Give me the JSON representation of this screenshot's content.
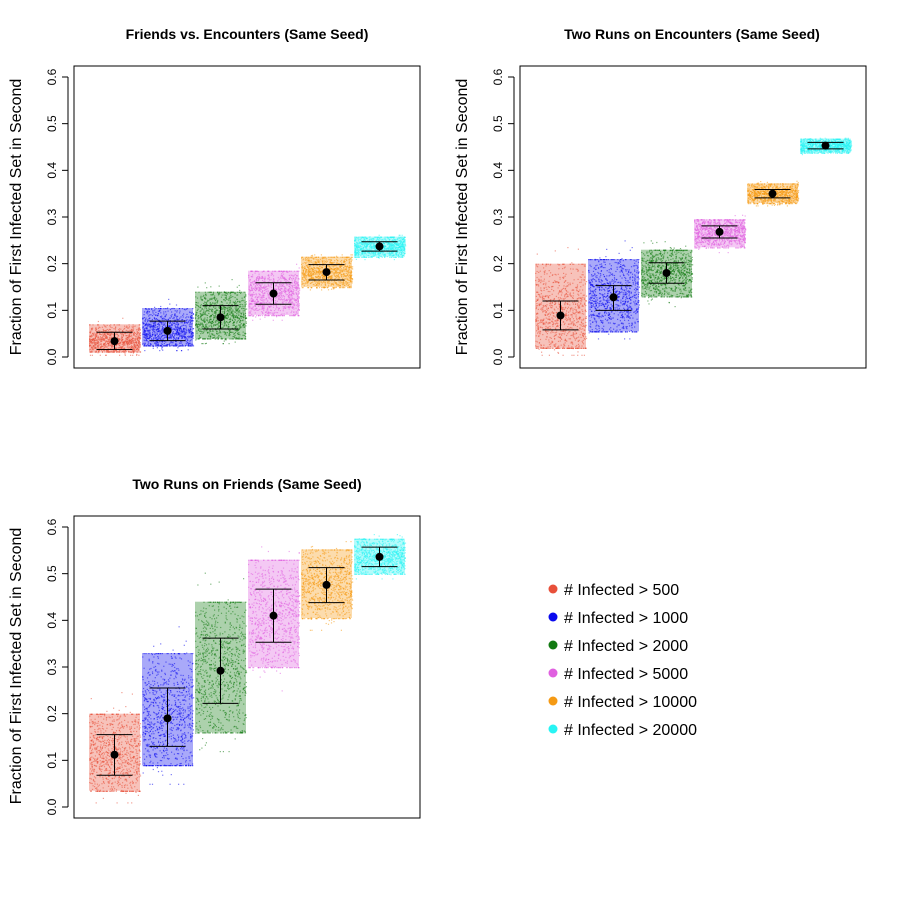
{
  "legend": {
    "title": "",
    "entries": [
      {
        "label": "# Infected > 500",
        "color": "#e8503a"
      },
      {
        "label": "# Infected > 1000",
        "color": "#0a0aee"
      },
      {
        "label": "# Infected > 2000",
        "color": "#127a12"
      },
      {
        "label": "# Infected > 5000",
        "color": "#e060e0"
      },
      {
        "label": "# Infected > 10000",
        "color": "#f59a14"
      },
      {
        "label": "# Infected > 20000",
        "color": "#28f4f4"
      }
    ]
  },
  "chart_data": [
    {
      "type": "scatter",
      "title": "Friends vs. Encounters (Same Seed)",
      "xlabel": "",
      "ylabel": "Fraction of First Infected Set in Second",
      "ylim": [
        0,
        0.6
      ],
      "yticks": [
        "0.0",
        "0.1",
        "0.2",
        "0.3",
        "0.4",
        "0.5",
        "0.6"
      ],
      "grid": false,
      "categories": [
        "# Infected > 500",
        "# Infected > 1000",
        "# Infected > 2000",
        "# Infected > 5000",
        "# Infected > 10000",
        "# Infected > 20000"
      ],
      "series": [
        {
          "name": "# Infected > 500",
          "mean": 0.034,
          "low": 0.016,
          "high": 0.053,
          "min": 0.005,
          "max": 0.11,
          "box_low": 0.012,
          "box_high": 0.07
        },
        {
          "name": "# Infected > 1000",
          "mean": 0.056,
          "low": 0.035,
          "high": 0.077,
          "min": 0.015,
          "max": 0.135,
          "box_low": 0.025,
          "box_high": 0.105
        },
        {
          "name": "# Infected > 2000",
          "mean": 0.085,
          "low": 0.06,
          "high": 0.11,
          "min": 0.03,
          "max": 0.17,
          "box_low": 0.04,
          "box_high": 0.14
        },
        {
          "name": "# Infected > 5000",
          "mean": 0.136,
          "low": 0.113,
          "high": 0.159,
          "min": 0.08,
          "max": 0.2,
          "box_low": 0.09,
          "box_high": 0.185
        },
        {
          "name": "# Infected > 10000",
          "mean": 0.182,
          "low": 0.165,
          "high": 0.198,
          "min": 0.145,
          "max": 0.22,
          "box_low": 0.15,
          "box_high": 0.215
        },
        {
          "name": "# Infected > 20000",
          "mean": 0.237,
          "low": 0.227,
          "high": 0.247,
          "min": 0.21,
          "max": 0.262,
          "box_low": 0.215,
          "box_high": 0.258
        }
      ]
    },
    {
      "type": "scatter",
      "title": "Two Runs on Encounters (Same Seed)",
      "xlabel": "",
      "ylabel": "Fraction of First Infected Set in Second",
      "ylim": [
        0,
        0.6
      ],
      "yticks": [
        "0.0",
        "0.1",
        "0.2",
        "0.3",
        "0.4",
        "0.5",
        "0.6"
      ],
      "grid": false,
      "categories": [
        "# Infected > 500",
        "# Infected > 1000",
        "# Infected > 2000",
        "# Infected > 5000",
        "# Infected > 10000",
        "# Infected > 20000"
      ],
      "series": [
        {
          "name": "# Infected > 500",
          "mean": 0.089,
          "low": 0.058,
          "high": 0.12,
          "min": 0.005,
          "max": 0.27,
          "box_low": 0.02,
          "box_high": 0.2
        },
        {
          "name": "# Infected > 1000",
          "mean": 0.128,
          "low": 0.1,
          "high": 0.153,
          "min": 0.04,
          "max": 0.25,
          "box_low": 0.055,
          "box_high": 0.21
        },
        {
          "name": "# Infected > 2000",
          "mean": 0.18,
          "low": 0.158,
          "high": 0.202,
          "min": 0.1,
          "max": 0.25,
          "box_low": 0.13,
          "box_high": 0.23
        },
        {
          "name": "# Infected > 5000",
          "mean": 0.268,
          "low": 0.255,
          "high": 0.281,
          "min": 0.225,
          "max": 0.305,
          "box_low": 0.235,
          "box_high": 0.295
        },
        {
          "name": "# Infected > 10000",
          "mean": 0.35,
          "low": 0.341,
          "high": 0.359,
          "min": 0.325,
          "max": 0.378,
          "box_low": 0.33,
          "box_high": 0.372
        },
        {
          "name": "# Infected > 20000",
          "mean": 0.453,
          "low": 0.446,
          "high": 0.46,
          "min": 0.435,
          "max": 0.47,
          "box_low": 0.438,
          "box_high": 0.468
        }
      ]
    },
    {
      "type": "scatter",
      "title": "Two Runs on Friends (Same Seed)",
      "xlabel": "",
      "ylabel": "Fraction of First Infected Set in Second",
      "ylim": [
        0,
        0.6
      ],
      "yticks": [
        "0.0",
        "0.1",
        "0.2",
        "0.3",
        "0.4",
        "0.5",
        "0.6"
      ],
      "grid": false,
      "categories": [
        "# Infected > 500",
        "# Infected > 1000",
        "# Infected > 2000",
        "# Infected > 5000",
        "# Infected > 10000",
        "# Infected > 20000"
      ],
      "series": [
        {
          "name": "# Infected > 500",
          "mean": 0.112,
          "low": 0.068,
          "high": 0.155,
          "min": 0.01,
          "max": 0.28,
          "box_low": 0.035,
          "box_high": 0.2
        },
        {
          "name": "# Infected > 1000",
          "mean": 0.19,
          "low": 0.13,
          "high": 0.255,
          "min": 0.05,
          "max": 0.4,
          "box_low": 0.09,
          "box_high": 0.33
        },
        {
          "name": "# Infected > 2000",
          "mean": 0.292,
          "low": 0.222,
          "high": 0.362,
          "min": 0.12,
          "max": 0.52,
          "box_low": 0.16,
          "box_high": 0.44
        },
        {
          "name": "# Infected > 5000",
          "mean": 0.41,
          "low": 0.353,
          "high": 0.467,
          "min": 0.25,
          "max": 0.575,
          "box_low": 0.3,
          "box_high": 0.53
        },
        {
          "name": "# Infected > 10000",
          "mean": 0.476,
          "low": 0.438,
          "high": 0.513,
          "min": 0.38,
          "max": 0.57,
          "box_low": 0.405,
          "box_high": 0.552
        },
        {
          "name": "# Infected > 20000",
          "mean": 0.536,
          "low": 0.515,
          "high": 0.557,
          "min": 0.49,
          "max": 0.585,
          "box_low": 0.5,
          "box_high": 0.575
        }
      ]
    }
  ]
}
